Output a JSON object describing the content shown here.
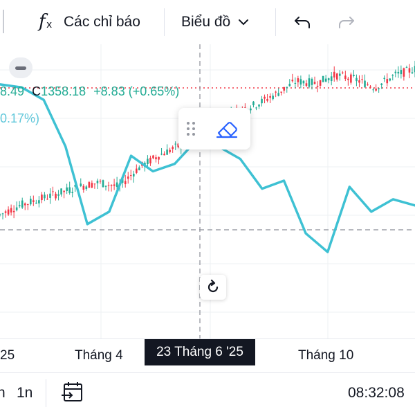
{
  "toolbar": {
    "indicators_label": "Các chỉ báo",
    "chart_label": "Biểu đồ",
    "icons": [
      "fx-icon",
      "chevron-down-icon",
      "undo-icon",
      "redo-icon"
    ]
  },
  "legend": {
    "close_prefix": "8.49",
    "c_label": "C",
    "close_value": "1358.18",
    "change": "+8.83",
    "change_pct": "(+0.65%)",
    "second_series_pct": "0.17%)"
  },
  "crosshair_time": "23 Tháng 6 '25",
  "x_axis": {
    "labels": [
      "25",
      "Tháng 4",
      "Tháng 10"
    ]
  },
  "bottom": {
    "left_partial": "n",
    "interval": "1n",
    "clock": "08:32:08"
  },
  "colors": {
    "up": "#22ab94",
    "down": "#f23645",
    "compare_line": "#3ec1d3",
    "accent": "#2962ff"
  },
  "chart_data": {
    "type": "line",
    "title": "",
    "series": [
      {
        "values": [
          1180,
          1195,
          1205,
          1215,
          1225,
          1232,
          1225,
          1255,
          1275,
          1290,
          1305,
          1330,
          1347,
          1358,
          1375,
          1395,
          1392,
          1405,
          1398,
          1385,
          1405,
          1415
        ]
      },
      {
        "values": [
          1390,
          1385,
          1365,
          1290,
          1165,
          1185,
          1275,
          1250,
          1262,
          1300,
          1290,
          1270,
          1222,
          1235,
          1150,
          1120,
          1225,
          1185,
          1205,
          1195
        ]
      }
    ]
  }
}
